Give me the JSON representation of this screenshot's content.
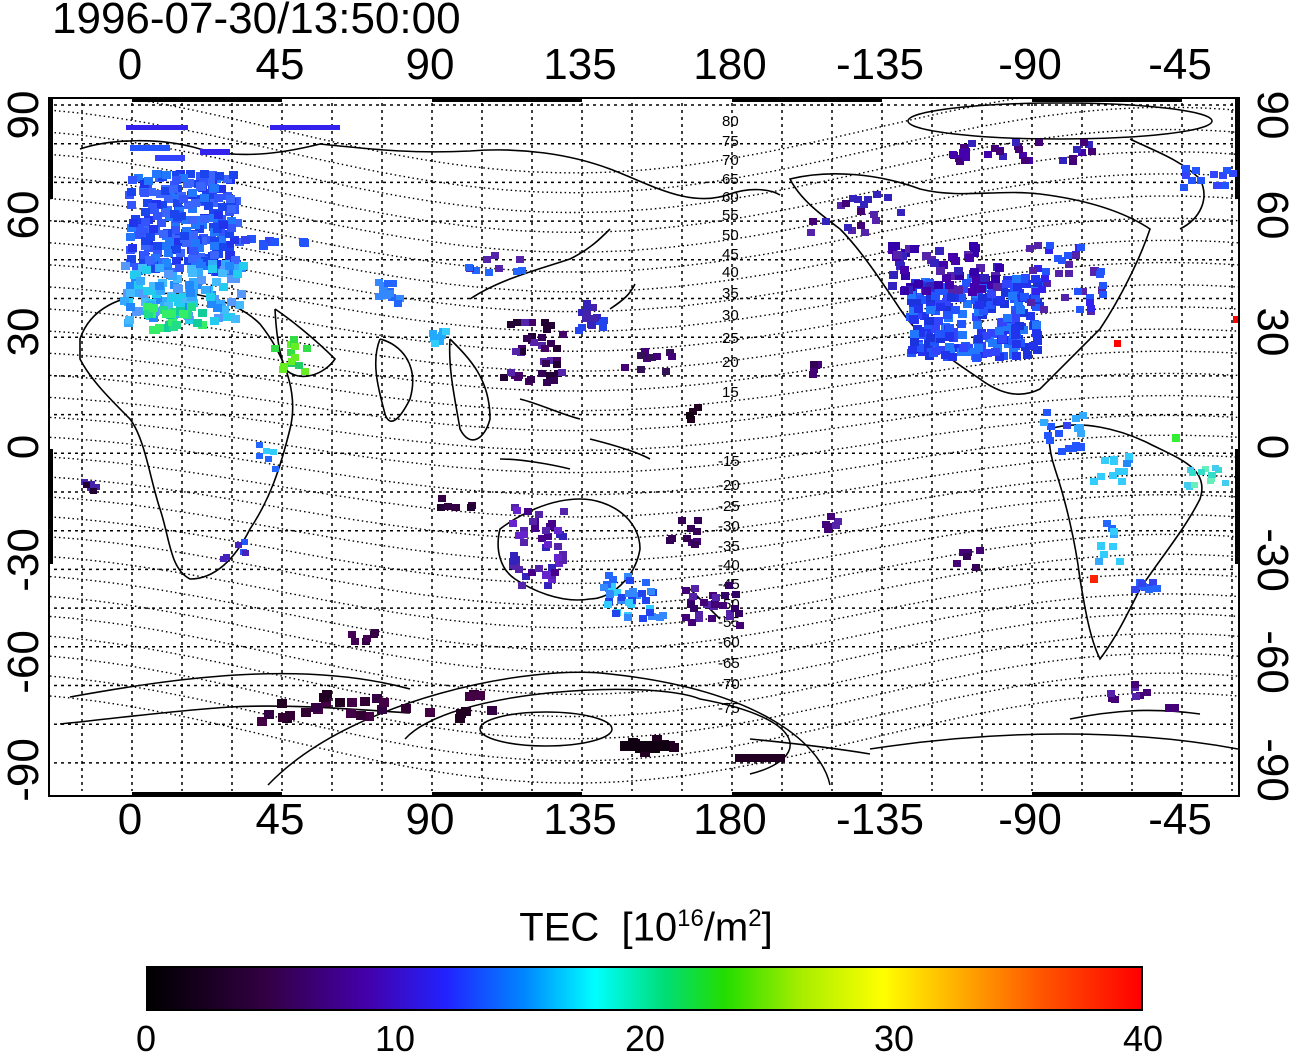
{
  "timestamp": "1996-07-30/13:50:00",
  "map": {
    "top_lon_labels": [
      "0",
      "45",
      "90",
      "135",
      "180",
      "-135",
      "-90",
      "-45"
    ],
    "bottom_lon_labels": [
      "0",
      "45",
      "90",
      "135",
      "180",
      "-135",
      "-90",
      "-45"
    ],
    "left_lat_labels": [
      "90",
      "60",
      "30",
      "0",
      "-30",
      "-60",
      "-90"
    ],
    "right_lat_labels": [
      "90",
      "60",
      "30",
      "0",
      "-30",
      "-60",
      "-90"
    ],
    "contour_labels_north": [
      "80",
      "75",
      "70",
      "65",
      "60",
      "55",
      "50",
      "45",
      "40",
      "35",
      "30",
      "25",
      "20",
      "15"
    ],
    "contour_labels_south": [
      "-15",
      "-20",
      "-25",
      "-30",
      "-35",
      "-40",
      "-45",
      "-50",
      "-55",
      "-60",
      "-65",
      "-70",
      "-75"
    ]
  },
  "colorbar": {
    "title": "TEC",
    "unit_base": "[10",
    "unit_exp": "16",
    "unit_mid": "/m",
    "unit_exp2": "2",
    "unit_end": "]",
    "ticks": [
      "0",
      "10",
      "20",
      "30",
      "40"
    ],
    "range": [
      0,
      40
    ]
  },
  "colors": {
    "low": "#000000",
    "mid": "#00ffff",
    "high": "#ff0000"
  }
}
